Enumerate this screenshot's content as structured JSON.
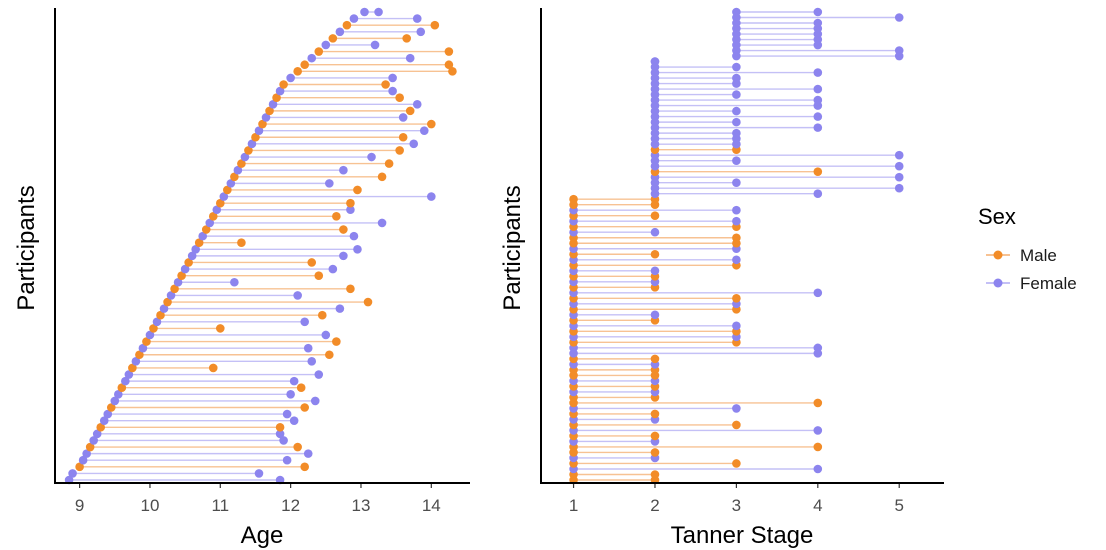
{
  "colors": {
    "Male": "#F28C28",
    "Female": "#8C84EE"
  },
  "legend": {
    "title": "Sex",
    "items": [
      {
        "label": "Male",
        "key": "Male"
      },
      {
        "label": "Female",
        "key": "Female"
      }
    ]
  },
  "chart_data": [
    {
      "type": "dumbbell",
      "xlabel": "Age",
      "ylabel": "Participants",
      "xlim": [
        8.65,
        14.55
      ],
      "xticks": [
        9,
        10,
        11,
        12,
        13,
        14
      ],
      "tick_labels": [
        "9",
        "10",
        "11",
        "12",
        "13",
        "14"
      ],
      "grid": false,
      "ordering": "participants sorted by first-visit age (bottom = youngest)",
      "participants": [
        {
          "sex": "Female",
          "x1": 8.85,
          "x2": 11.85
        },
        {
          "sex": "Female",
          "x1": 8.9,
          "x2": 11.55
        },
        {
          "sex": "Male",
          "x1": 9.0,
          "x2": 12.2
        },
        {
          "sex": "Female",
          "x1": 9.05,
          "x2": 11.95
        },
        {
          "sex": "Female",
          "x1": 9.1,
          "x2": 12.25
        },
        {
          "sex": "Male",
          "x1": 9.15,
          "x2": 12.1
        },
        {
          "sex": "Female",
          "x1": 9.2,
          "x2": 11.9
        },
        {
          "sex": "Female",
          "x1": 9.25,
          "x2": 11.85
        },
        {
          "sex": "Male",
          "x1": 9.3,
          "x2": 11.85
        },
        {
          "sex": "Female",
          "x1": 9.35,
          "x2": 12.05
        },
        {
          "sex": "Female",
          "x1": 9.4,
          "x2": 11.95
        },
        {
          "sex": "Male",
          "x1": 9.45,
          "x2": 12.2
        },
        {
          "sex": "Female",
          "x1": 9.5,
          "x2": 12.35
        },
        {
          "sex": "Female",
          "x1": 9.55,
          "x2": 12.0
        },
        {
          "sex": "Male",
          "x1": 9.6,
          "x2": 12.15
        },
        {
          "sex": "Female",
          "x1": 9.65,
          "x2": 12.05
        },
        {
          "sex": "Female",
          "x1": 9.7,
          "x2": 12.4
        },
        {
          "sex": "Male",
          "x1": 9.75,
          "x2": 10.9
        },
        {
          "sex": "Female",
          "x1": 9.8,
          "x2": 12.3
        },
        {
          "sex": "Male",
          "x1": 9.85,
          "x2": 12.55
        },
        {
          "sex": "Female",
          "x1": 9.9,
          "x2": 12.25
        },
        {
          "sex": "Male",
          "x1": 9.95,
          "x2": 12.65
        },
        {
          "sex": "Female",
          "x1": 10.0,
          "x2": 12.5
        },
        {
          "sex": "Male",
          "x1": 10.05,
          "x2": 11.0
        },
        {
          "sex": "Female",
          "x1": 10.1,
          "x2": 12.2
        },
        {
          "sex": "Male",
          "x1": 10.15,
          "x2": 12.45
        },
        {
          "sex": "Female",
          "x1": 10.2,
          "x2": 12.7
        },
        {
          "sex": "Male",
          "x1": 10.25,
          "x2": 13.1
        },
        {
          "sex": "Female",
          "x1": 10.3,
          "x2": 12.1
        },
        {
          "sex": "Male",
          "x1": 10.35,
          "x2": 12.85
        },
        {
          "sex": "Female",
          "x1": 10.4,
          "x2": 11.2
        },
        {
          "sex": "Male",
          "x1": 10.45,
          "x2": 12.4
        },
        {
          "sex": "Female",
          "x1": 10.5,
          "x2": 12.6
        },
        {
          "sex": "Male",
          "x1": 10.55,
          "x2": 12.3
        },
        {
          "sex": "Female",
          "x1": 10.6,
          "x2": 12.75
        },
        {
          "sex": "Female",
          "x1": 10.65,
          "x2": 12.95
        },
        {
          "sex": "Male",
          "x1": 10.7,
          "x2": 11.3
        },
        {
          "sex": "Female",
          "x1": 10.75,
          "x2": 12.9
        },
        {
          "sex": "Male",
          "x1": 10.8,
          "x2": 12.75
        },
        {
          "sex": "Female",
          "x1": 10.85,
          "x2": 13.3
        },
        {
          "sex": "Male",
          "x1": 10.9,
          "x2": 12.65
        },
        {
          "sex": "Female",
          "x1": 10.95,
          "x2": 12.85
        },
        {
          "sex": "Male",
          "x1": 11.0,
          "x2": 12.85
        },
        {
          "sex": "Female",
          "x1": 11.05,
          "x2": 14.0
        },
        {
          "sex": "Male",
          "x1": 11.1,
          "x2": 12.95
        },
        {
          "sex": "Female",
          "x1": 11.15,
          "x2": 12.55
        },
        {
          "sex": "Male",
          "x1": 11.2,
          "x2": 13.3
        },
        {
          "sex": "Female",
          "x1": 11.25,
          "x2": 12.75
        },
        {
          "sex": "Male",
          "x1": 11.3,
          "x2": 13.4
        },
        {
          "sex": "Female",
          "x1": 11.35,
          "x2": 13.15
        },
        {
          "sex": "Male",
          "x1": 11.4,
          "x2": 13.55
        },
        {
          "sex": "Female",
          "x1": 11.45,
          "x2": 13.75
        },
        {
          "sex": "Male",
          "x1": 11.5,
          "x2": 13.6
        },
        {
          "sex": "Female",
          "x1": 11.55,
          "x2": 13.9
        },
        {
          "sex": "Male",
          "x1": 11.6,
          "x2": 14.0
        },
        {
          "sex": "Female",
          "x1": 11.65,
          "x2": 13.6
        },
        {
          "sex": "Male",
          "x1": 11.7,
          "x2": 13.7
        },
        {
          "sex": "Female",
          "x1": 11.75,
          "x2": 13.8
        },
        {
          "sex": "Male",
          "x1": 11.8,
          "x2": 13.55
        },
        {
          "sex": "Female",
          "x1": 11.85,
          "x2": 13.45
        },
        {
          "sex": "Male",
          "x1": 11.9,
          "x2": 13.35
        },
        {
          "sex": "Female",
          "x1": 12.0,
          "x2": 13.45
        },
        {
          "sex": "Male",
          "x1": 12.1,
          "x2": 14.3
        },
        {
          "sex": "Male",
          "x1": 12.2,
          "x2": 14.25
        },
        {
          "sex": "Female",
          "x1": 12.3,
          "x2": 13.7
        },
        {
          "sex": "Male",
          "x1": 12.4,
          "x2": 14.25
        },
        {
          "sex": "Female",
          "x1": 12.5,
          "x2": 13.2
        },
        {
          "sex": "Male",
          "x1": 12.6,
          "x2": 13.65
        },
        {
          "sex": "Female",
          "x1": 12.7,
          "x2": 13.85
        },
        {
          "sex": "Male",
          "x1": 12.8,
          "x2": 14.05
        },
        {
          "sex": "Female",
          "x1": 12.9,
          "x2": 13.8
        },
        {
          "sex": "Female",
          "x1": 13.05,
          "x2": 13.25
        }
      ]
    },
    {
      "type": "dumbbell",
      "xlabel": "Tanner Stage",
      "ylabel": "Participants",
      "xlim": [
        0.6,
        5.55
      ],
      "xticks": [
        1,
        2,
        3,
        4,
        5
      ],
      "tick_labels": [
        "1",
        "2",
        "3",
        "4",
        "5"
      ],
      "grid": false,
      "ordering": "participants sorted by first-visit Tanner stage (bottom = lowest)",
      "participants": [
        {
          "sex": "Male",
          "x1": 1,
          "x2": 2
        },
        {
          "sex": "Male",
          "x1": 1,
          "x2": 2
        },
        {
          "sex": "Female",
          "x1": 1,
          "x2": 4
        },
        {
          "sex": "Male",
          "x1": 1,
          "x2": 3
        },
        {
          "sex": "Female",
          "x1": 1,
          "x2": 2
        },
        {
          "sex": "Male",
          "x1": 1,
          "x2": 2
        },
        {
          "sex": "Male",
          "x1": 1,
          "x2": 4
        },
        {
          "sex": "Female",
          "x1": 1,
          "x2": 2
        },
        {
          "sex": "Male",
          "x1": 1,
          "x2": 2
        },
        {
          "sex": "Female",
          "x1": 1,
          "x2": 4
        },
        {
          "sex": "Male",
          "x1": 1,
          "x2": 3
        },
        {
          "sex": "Female",
          "x1": 1,
          "x2": 2
        },
        {
          "sex": "Male",
          "x1": 1,
          "x2": 2
        },
        {
          "sex": "Female",
          "x1": 1,
          "x2": 3
        },
        {
          "sex": "Male",
          "x1": 1,
          "x2": 4
        },
        {
          "sex": "Male",
          "x1": 1,
          "x2": 2
        },
        {
          "sex": "Female",
          "x1": 1,
          "x2": 2
        },
        {
          "sex": "Male",
          "x1": 1,
          "x2": 2
        },
        {
          "sex": "Female",
          "x1": 1,
          "x2": 2
        },
        {
          "sex": "Male",
          "x1": 1,
          "x2": 2
        },
        {
          "sex": "Male",
          "x1": 1,
          "x2": 2
        },
        {
          "sex": "Female",
          "x1": 1,
          "x2": 2
        },
        {
          "sex": "Male",
          "x1": 1,
          "x2": 2
        },
        {
          "sex": "Female",
          "x1": 1,
          "x2": 4
        },
        {
          "sex": "Female",
          "x1": 1,
          "x2": 4
        },
        {
          "sex": "Male",
          "x1": 1,
          "x2": 3
        },
        {
          "sex": "Female",
          "x1": 1,
          "x2": 3
        },
        {
          "sex": "Male",
          "x1": 1,
          "x2": 3
        },
        {
          "sex": "Female",
          "x1": 1,
          "x2": 3
        },
        {
          "sex": "Male",
          "x1": 1,
          "x2": 2
        },
        {
          "sex": "Female",
          "x1": 1,
          "x2": 2
        },
        {
          "sex": "Male",
          "x1": 1,
          "x2": 3
        },
        {
          "sex": "Female",
          "x1": 1,
          "x2": 3
        },
        {
          "sex": "Male",
          "x1": 1,
          "x2": 3
        },
        {
          "sex": "Female",
          "x1": 1,
          "x2": 4
        },
        {
          "sex": "Male",
          "x1": 1,
          "x2": 2
        },
        {
          "sex": "Female",
          "x1": 1,
          "x2": 2
        },
        {
          "sex": "Male",
          "x1": 1,
          "x2": 2
        },
        {
          "sex": "Female",
          "x1": 1,
          "x2": 2
        },
        {
          "sex": "Male",
          "x1": 1,
          "x2": 3
        },
        {
          "sex": "Female",
          "x1": 1,
          "x2": 3
        },
        {
          "sex": "Male",
          "x1": 1,
          "x2": 2
        },
        {
          "sex": "Female",
          "x1": 1,
          "x2": 3
        },
        {
          "sex": "Male",
          "x1": 1,
          "x2": 3
        },
        {
          "sex": "Male",
          "x1": 1,
          "x2": 3
        },
        {
          "sex": "Female",
          "x1": 1,
          "x2": 2
        },
        {
          "sex": "Male",
          "x1": 1,
          "x2": 3
        },
        {
          "sex": "Female",
          "x1": 1,
          "x2": 3
        },
        {
          "sex": "Male",
          "x1": 1,
          "x2": 2
        },
        {
          "sex": "Female",
          "x1": 1,
          "x2": 3
        },
        {
          "sex": "Male",
          "x1": 1,
          "x2": 2
        },
        {
          "sex": "Male",
          "x1": 1,
          "x2": 2
        },
        {
          "sex": "Female",
          "x1": 2,
          "x2": 4
        },
        {
          "sex": "Female",
          "x1": 2,
          "x2": 5
        },
        {
          "sex": "Female",
          "x1": 2,
          "x2": 3
        },
        {
          "sex": "Female",
          "x1": 2,
          "x2": 5
        },
        {
          "sex": "Male",
          "x1": 2,
          "x2": 4
        },
        {
          "sex": "Female",
          "x1": 2,
          "x2": 5
        },
        {
          "sex": "Female",
          "x1": 2,
          "x2": 3
        },
        {
          "sex": "Female",
          "x1": 2,
          "x2": 5
        },
        {
          "sex": "Male",
          "x1": 2,
          "x2": 3
        },
        {
          "sex": "Female",
          "x1": 2,
          "x2": 3
        },
        {
          "sex": "Female",
          "x1": 2,
          "x2": 3
        },
        {
          "sex": "Female",
          "x1": 2,
          "x2": 3
        },
        {
          "sex": "Female",
          "x1": 2,
          "x2": 4
        },
        {
          "sex": "Female",
          "x1": 2,
          "x2": 3
        },
        {
          "sex": "Female",
          "x1": 2,
          "x2": 4
        },
        {
          "sex": "Female",
          "x1": 2,
          "x2": 3
        },
        {
          "sex": "Female",
          "x1": 2,
          "x2": 4
        },
        {
          "sex": "Female",
          "x1": 2,
          "x2": 4
        },
        {
          "sex": "Female",
          "x1": 2,
          "x2": 3
        },
        {
          "sex": "Female",
          "x1": 2,
          "x2": 4
        },
        {
          "sex": "Female",
          "x1": 2,
          "x2": 3
        },
        {
          "sex": "Female",
          "x1": 2,
          "x2": 3
        },
        {
          "sex": "Female",
          "x1": 2,
          "x2": 4
        },
        {
          "sex": "Female",
          "x1": 2,
          "x2": 3
        },
        {
          "sex": "Female",
          "x1": 2,
          "x2": 2
        },
        {
          "sex": "Female",
          "x1": 3,
          "x2": 5
        },
        {
          "sex": "Female",
          "x1": 3,
          "x2": 5
        },
        {
          "sex": "Female",
          "x1": 3,
          "x2": 4
        },
        {
          "sex": "Female",
          "x1": 3,
          "x2": 4
        },
        {
          "sex": "Female",
          "x1": 3,
          "x2": 4
        },
        {
          "sex": "Female",
          "x1": 3,
          "x2": 4
        },
        {
          "sex": "Female",
          "x1": 3,
          "x2": 4
        },
        {
          "sex": "Female",
          "x1": 3,
          "x2": 5
        },
        {
          "sex": "Female",
          "x1": 3,
          "x2": 4
        }
      ]
    }
  ]
}
